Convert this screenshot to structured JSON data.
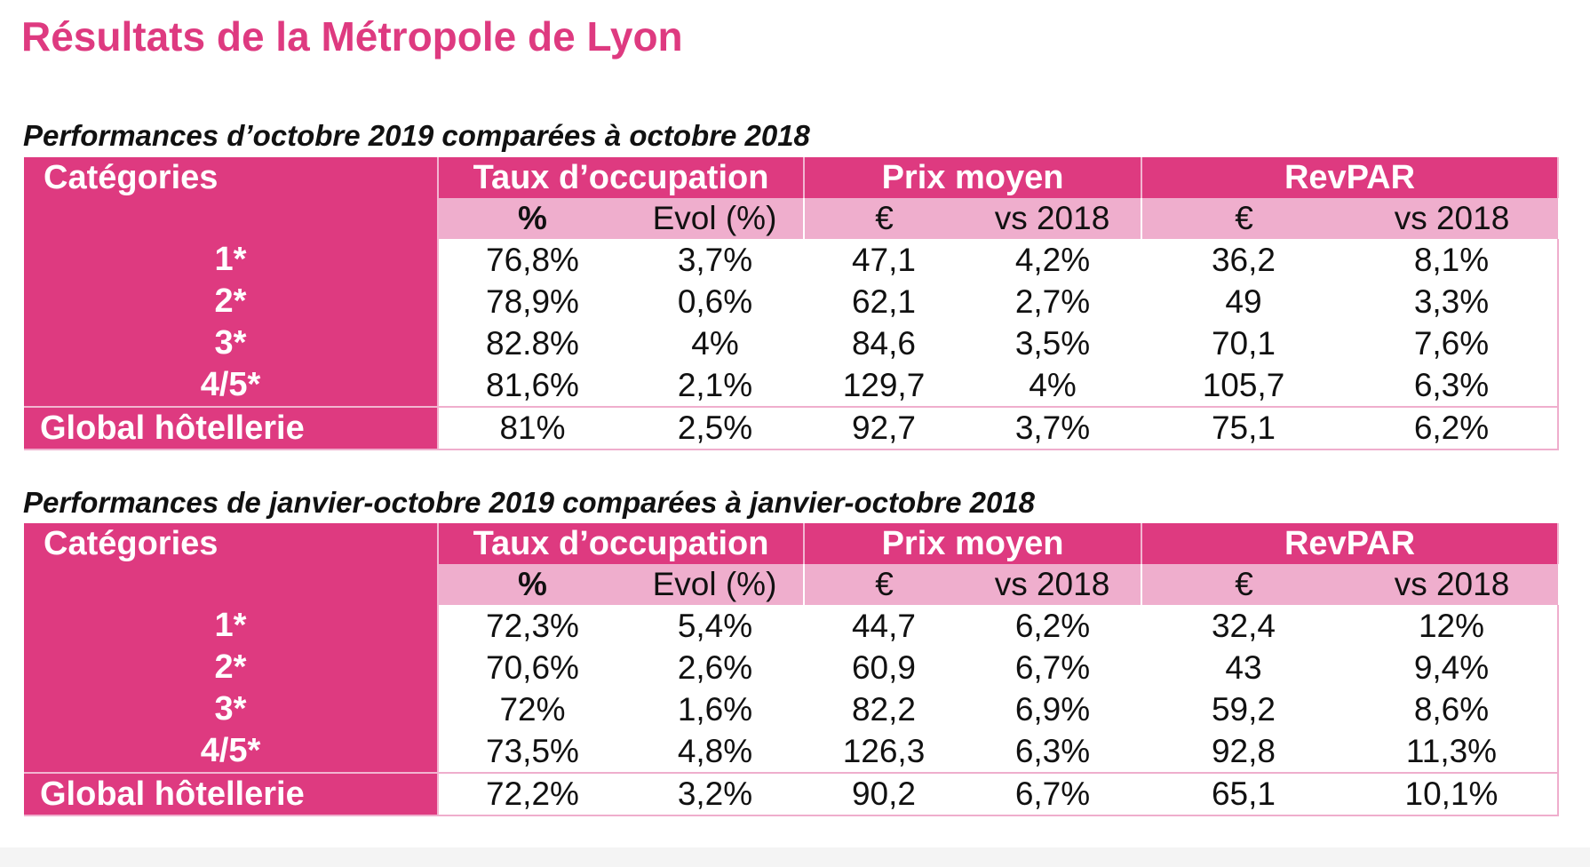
{
  "page_title": "Résultats de la Métropole de Lyon",
  "headers": {
    "categories": "Catégories",
    "taux": "Taux d’occupation",
    "prix": "Prix moyen",
    "revpar": "RevPAR",
    "sub": [
      "%",
      "Evol (%)",
      "€",
      "vs 2018",
      "€",
      "vs 2018"
    ]
  },
  "sections": [
    {
      "title": "Performances d’octobre 2019 comparées à octobre 2018",
      "rows": [
        {
          "category": "1*",
          "values": [
            "76,8%",
            "3,7%",
            "47,1",
            "4,2%",
            "36,2",
            "8,1%"
          ]
        },
        {
          "category": "2*",
          "values": [
            "78,9%",
            "0,6%",
            "62,1",
            "2,7%",
            "49",
            "3,3%"
          ]
        },
        {
          "category": "3*",
          "values": [
            "82.8%",
            "4%",
            "84,6",
            "3,5%",
            "70,1",
            "7,6%"
          ]
        },
        {
          "category": "4/5*",
          "values": [
            "81,6%",
            "2,1%",
            "129,7",
            "4%",
            "105,7",
            "6,3%"
          ]
        }
      ],
      "global": {
        "category": "Global hôtellerie",
        "values": [
          "81%",
          "2,5%",
          "92,7",
          "3,7%",
          "75,1",
          "6,2%"
        ]
      }
    },
    {
      "title": "Performances de janvier-octobre 2019 comparées à janvier-octobre 2018",
      "rows": [
        {
          "category": "1*",
          "values": [
            "72,3%",
            "5,4%",
            "44,7",
            "6,2%",
            "32,4",
            "12%"
          ]
        },
        {
          "category": "2*",
          "values": [
            "70,6%",
            "2,6%",
            "60,9",
            "6,7%",
            "43",
            "9,4%"
          ]
        },
        {
          "category": "3*",
          "values": [
            "72%",
            "1,6%",
            "82,2",
            "6,9%",
            "59,2",
            "8,6%"
          ]
        },
        {
          "category": "4/5*",
          "values": [
            "73,5%",
            "4,8%",
            "126,3",
            "6,3%",
            "92,8",
            "11,3%"
          ]
        }
      ],
      "global": {
        "category": "Global hôtellerie",
        "values": [
          "72,2%",
          "3,2%",
          "90,2",
          "6,7%",
          "65,1",
          "10,1%"
        ]
      }
    }
  ],
  "colors": {
    "accent": "#de3a80",
    "subheader": "#efaecd",
    "border": "#f2b5d1"
  }
}
